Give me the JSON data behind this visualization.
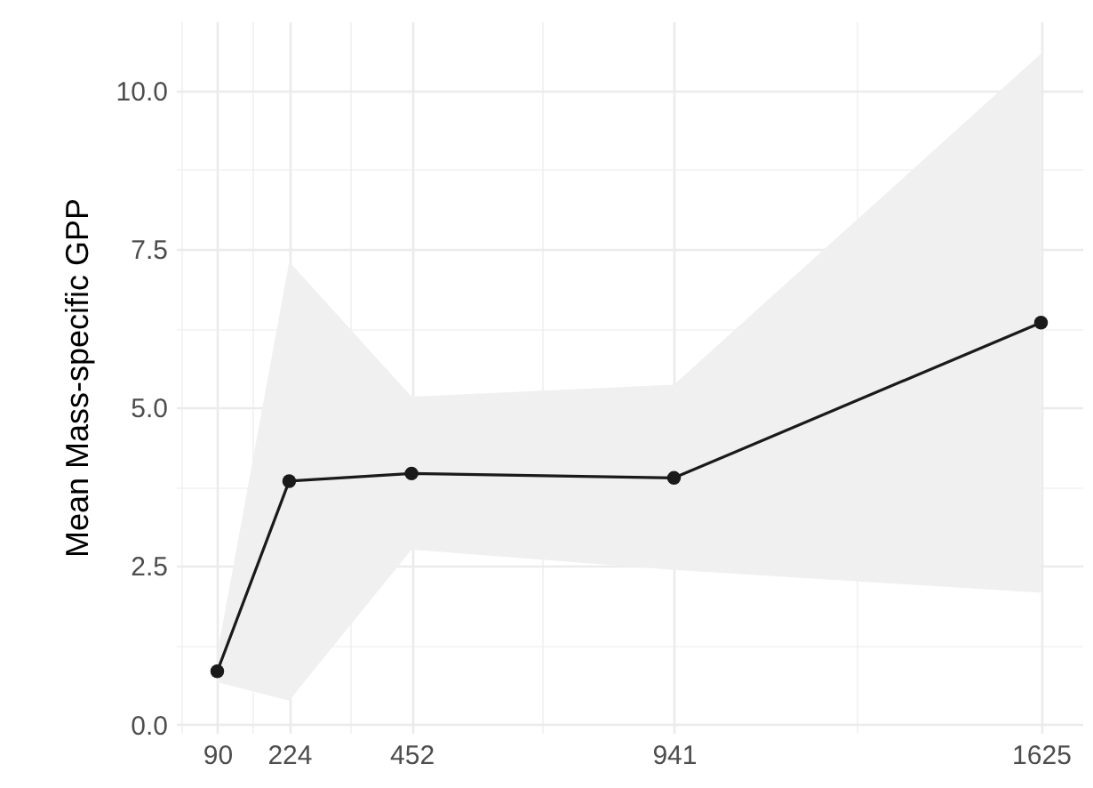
{
  "chart_data": {
    "type": "line",
    "ylabel": "Mean Mass-specific GPP",
    "x": [
      90,
      224,
      452,
      941,
      1625
    ],
    "series": [
      {
        "color": "#1a1a1a",
        "values": [
          0.84,
          3.84,
          3.96,
          3.89,
          6.34
        ],
        "lower": [
          0.67,
          0.38,
          2.76,
          2.44,
          2.08
        ],
        "upper": [
          1.12,
          7.3,
          5.17,
          5.36,
          10.58
        ]
      }
    ],
    "xlim": [
      13,
      1702
    ],
    "xticks": [
      {
        "value": 23,
        "label": null
      },
      90,
      {
        "value": 157,
        "label": null
      },
      224,
      {
        "value": 338,
        "label": null
      },
      452,
      {
        "value": 696.5,
        "label": null
      },
      941,
      {
        "value": 1283,
        "label": null
      },
      1625
    ],
    "ylim": [
      -0.13,
      11.09
    ],
    "yticks": [
      {
        "value": 0,
        "label": "0.0"
      },
      {
        "value": 1.25,
        "label": null
      },
      {
        "value": 2.5,
        "label": "2.5"
      },
      {
        "value": 3.75,
        "label": null
      },
      {
        "value": 5,
        "label": "5.0"
      },
      {
        "value": 6.25,
        "label": null
      },
      {
        "value": 7.5,
        "label": "7.5"
      },
      {
        "value": 8.75,
        "label": null
      },
      {
        "value": 10,
        "label": "10.0"
      }
    ],
    "grid": true,
    "marker": "circle",
    "line_style": "solid"
  }
}
